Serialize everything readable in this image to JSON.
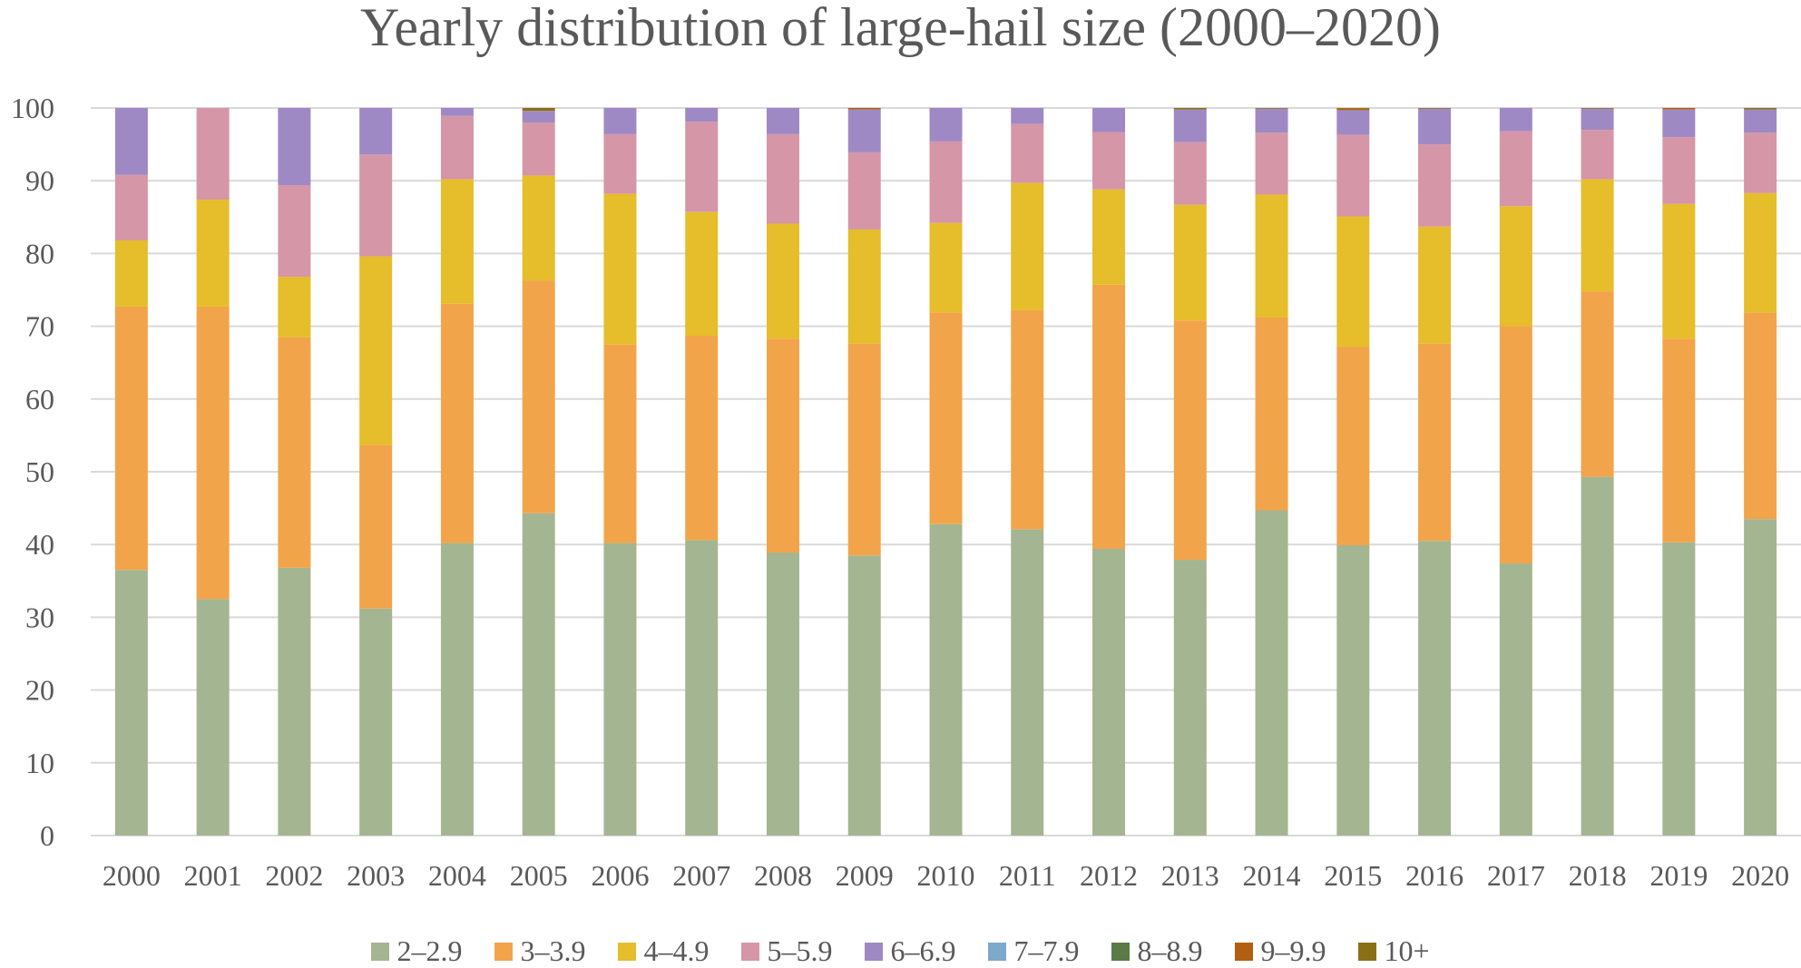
{
  "chart_data": {
    "type": "bar",
    "stacked": true,
    "title": "Yearly distribution of large-hail size (2000–2020)",
    "xlabel": "",
    "ylabel": "",
    "ylim": [
      0,
      100
    ],
    "yticks": [
      0,
      10,
      20,
      30,
      40,
      50,
      60,
      70,
      80,
      90,
      100
    ],
    "grid": true,
    "legend_position": "bottom",
    "categories": [
      "2000",
      "2001",
      "2002",
      "2003",
      "2004",
      "2005",
      "2006",
      "2007",
      "2008",
      "2009",
      "2010",
      "2011",
      "2012",
      "2013",
      "2014",
      "2015",
      "2016",
      "2017",
      "2018",
      "2019",
      "2020"
    ],
    "series": [
      {
        "name": "2–2.9",
        "color": "#a4b591",
        "values": [
          36.5,
          32.5,
          36.8,
          31.2,
          40.2,
          44.3,
          40.2,
          40.6,
          38.9,
          38.5,
          42.8,
          42.1,
          39.4,
          37.9,
          44.7,
          39.9,
          40.5,
          37.4,
          49.3,
          40.3,
          43.5
        ]
      },
      {
        "name": "3–3.9",
        "color": "#f2a44a",
        "values": [
          36.2,
          40.2,
          31.7,
          22.5,
          32.9,
          32.0,
          27.3,
          28.1,
          29.4,
          29.1,
          29.1,
          30.1,
          36.3,
          32.9,
          26.5,
          27.3,
          27.1,
          32.6,
          25.5,
          28.0,
          28.4
        ]
      },
      {
        "name": "4–4.9",
        "color": "#e6bd2a",
        "values": [
          9.1,
          14.7,
          8.3,
          25.9,
          17.1,
          14.4,
          20.7,
          17.0,
          15.8,
          15.7,
          12.3,
          17.5,
          13.1,
          15.9,
          16.9,
          17.9,
          16.1,
          16.5,
          15.4,
          18.5,
          16.4
        ]
      },
      {
        "name": "5–5.9",
        "color": "#d596a7",
        "values": [
          9.0,
          12.6,
          12.6,
          14.0,
          8.7,
          7.3,
          8.2,
          12.4,
          12.3,
          10.6,
          11.2,
          8.1,
          7.9,
          8.6,
          8.5,
          11.2,
          11.3,
          10.3,
          6.8,
          9.2,
          8.3
        ]
      },
      {
        "name": "6–6.9",
        "color": "#9f89c4",
        "values": [
          9.2,
          0.0,
          10.6,
          6.4,
          1.1,
          1.6,
          3.6,
          1.9,
          3.6,
          5.9,
          4.6,
          2.2,
          3.3,
          4.5,
          3.3,
          3.4,
          4.9,
          3.2,
          2.9,
          3.8,
          3.2
        ]
      },
      {
        "name": "7–7.9",
        "color": "#7ea8cc",
        "values": [
          0,
          0,
          0,
          0,
          0,
          0,
          0,
          0,
          0,
          0,
          0,
          0,
          0,
          0,
          0,
          0,
          0,
          0,
          0,
          0,
          0
        ]
      },
      {
        "name": "8–8.9",
        "color": "#5b7a45",
        "values": [
          0,
          0,
          0,
          0,
          0,
          0,
          0,
          0,
          0,
          0,
          0,
          0,
          0,
          0,
          0,
          0,
          0,
          0,
          0,
          0,
          0
        ]
      },
      {
        "name": "9–9.9",
        "color": "#b15f10",
        "values": [
          0,
          0,
          0,
          0,
          0,
          0,
          0,
          0,
          0,
          0.2,
          0,
          0,
          0,
          0,
          0,
          0.2,
          0,
          0,
          0,
          0.2,
          0
        ]
      },
      {
        "name": "10+",
        "color": "#8b6f14",
        "values": [
          0,
          0,
          0,
          0,
          0,
          0.4,
          0,
          0,
          0,
          0,
          0,
          0,
          0,
          0.2,
          0.1,
          0.1,
          0.1,
          0,
          0.1,
          0,
          0.2
        ]
      }
    ]
  }
}
